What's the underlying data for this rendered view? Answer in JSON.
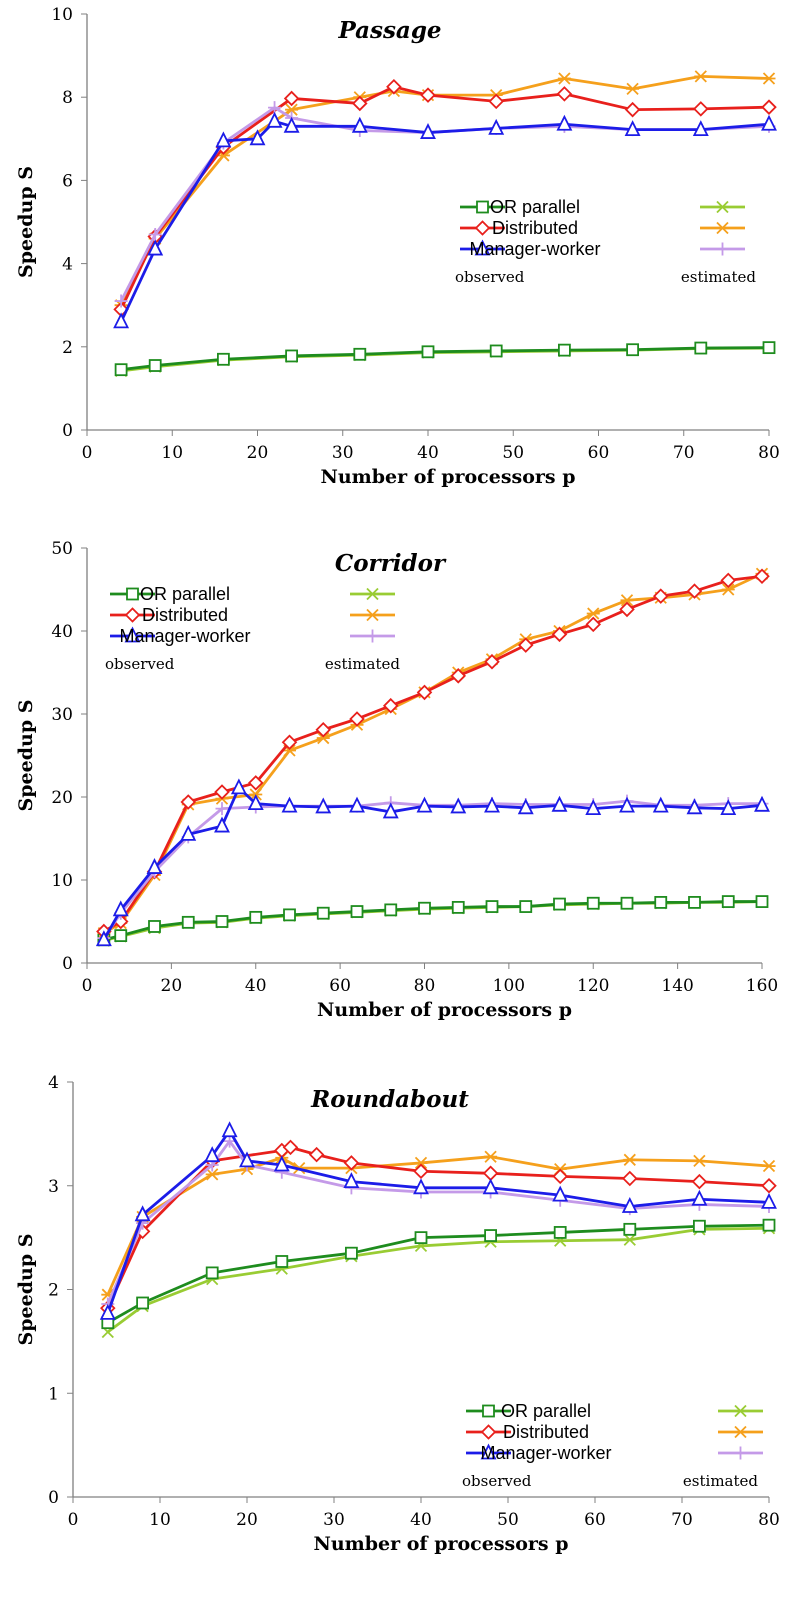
{
  "chart_data": [
    {
      "type": "line",
      "title": "Passage",
      "xlabel": "Number of processors p",
      "ylabel": "Speedup S",
      "xlim": [
        0,
        80
      ],
      "ylim": [
        0,
        10
      ],
      "xticks": [
        0,
        10,
        20,
        30,
        40,
        50,
        60,
        70,
        80
      ],
      "yticks": [
        0,
        2,
        4,
        6,
        8,
        10
      ],
      "legend_placement": "center-right",
      "legend_notes": {
        "observed": "observed",
        "estimated": "estimated"
      },
      "series": [
        {
          "name": "OR parallel",
          "kind": "observed",
          "color": "#1e8c1e",
          "marker": "square",
          "x": [
            4,
            8,
            16,
            24,
            32,
            40,
            48,
            56,
            64,
            72,
            80
          ],
          "y": [
            1.45,
            1.55,
            1.7,
            1.78,
            1.82,
            1.88,
            1.9,
            1.92,
            1.93,
            1.97,
            1.98
          ]
        },
        {
          "name": "",
          "kind": "estimated",
          "color": "#99cc33",
          "marker": "x",
          "x": [
            4,
            8,
            16,
            24,
            32,
            40,
            48,
            56,
            64,
            72,
            80
          ],
          "y": [
            1.42,
            1.52,
            1.68,
            1.76,
            1.8,
            1.86,
            1.88,
            1.9,
            1.92,
            1.96,
            1.97
          ]
        },
        {
          "name": "Distributed",
          "kind": "observed",
          "color": "#e8201c",
          "marker": "diamond",
          "x": [
            4,
            8,
            16,
            24,
            32,
            36,
            40,
            48,
            56,
            64,
            72,
            80
          ],
          "y": [
            2.9,
            4.65,
            6.8,
            7.97,
            7.85,
            8.25,
            8.05,
            7.9,
            8.08,
            7.7,
            7.72,
            7.76
          ]
        },
        {
          "name": "",
          "kind": "estimated",
          "color": "#f5a01c",
          "marker": "asterisk",
          "x": [
            4,
            8,
            16,
            24,
            32,
            36,
            40,
            48,
            56,
            64,
            72,
            80
          ],
          "y": [
            3.0,
            4.6,
            6.6,
            7.7,
            8.0,
            8.15,
            8.05,
            8.05,
            8.45,
            8.2,
            8.5,
            8.45
          ]
        },
        {
          "name": "Manager-worker",
          "kind": "observed",
          "color": "#1c1ce8",
          "marker": "triangle",
          "x": [
            4,
            8,
            16,
            20,
            22,
            24,
            32,
            40,
            48,
            56,
            64,
            72,
            80
          ],
          "y": [
            2.6,
            4.35,
            6.95,
            7.0,
            7.42,
            7.3,
            7.3,
            7.15,
            7.25,
            7.35,
            7.22,
            7.22,
            7.35
          ]
        },
        {
          "name": "",
          "kind": "estimated",
          "color": "#c49ae8",
          "marker": "plus",
          "x": [
            4,
            8,
            16,
            22,
            24,
            32,
            40,
            48,
            56,
            64,
            72,
            80
          ],
          "y": [
            3.1,
            4.7,
            6.9,
            7.75,
            7.5,
            7.2,
            7.15,
            7.25,
            7.3,
            7.22,
            7.22,
            7.3
          ]
        }
      ]
    },
    {
      "type": "line",
      "title": "Corridor",
      "xlabel": "Number of processors p",
      "ylabel": "Speedup S",
      "xlim": [
        0,
        160
      ],
      "ylim": [
        0,
        50
      ],
      "xticks": [
        0,
        20,
        40,
        60,
        80,
        100,
        120,
        140,
        160
      ],
      "yticks": [
        0,
        10,
        20,
        30,
        40,
        50
      ],
      "legend_placement": "top-left",
      "legend_notes": {
        "observed": "observed",
        "estimated": "estimated"
      },
      "series": [
        {
          "name": "OR parallel",
          "kind": "observed",
          "color": "#1e8c1e",
          "marker": "square",
          "x": [
            4,
            8,
            16,
            24,
            32,
            40,
            48,
            56,
            64,
            72,
            80,
            88,
            96,
            104,
            112,
            120,
            128,
            136,
            144,
            152,
            160
          ],
          "y": [
            2.8,
            3.3,
            4.4,
            4.9,
            5.0,
            5.5,
            5.8,
            6.0,
            6.2,
            6.4,
            6.6,
            6.7,
            6.8,
            6.8,
            7.1,
            7.2,
            7.2,
            7.3,
            7.3,
            7.4,
            7.4
          ]
        },
        {
          "name": "",
          "kind": "estimated",
          "color": "#99cc33",
          "marker": "x",
          "x": [
            4,
            8,
            16,
            24,
            32,
            40,
            48,
            56,
            64,
            72,
            80,
            88,
            96,
            104,
            112,
            120,
            128,
            136,
            144,
            152,
            160
          ],
          "y": [
            2.7,
            3.2,
            4.2,
            4.8,
            4.9,
            5.4,
            5.7,
            5.9,
            6.1,
            6.3,
            6.5,
            6.6,
            6.7,
            6.8,
            7.0,
            7.1,
            7.2,
            7.2,
            7.3,
            7.3,
            7.4
          ]
        },
        {
          "name": "Distributed",
          "kind": "observed",
          "color": "#e8201c",
          "marker": "diamond",
          "x": [
            4,
            8,
            16,
            24,
            32,
            40,
            48,
            56,
            64,
            72,
            80,
            88,
            96,
            104,
            112,
            120,
            128,
            136,
            144,
            152,
            160
          ],
          "y": [
            3.8,
            5.0,
            11.0,
            19.4,
            20.6,
            21.7,
            26.6,
            28.1,
            29.4,
            31.0,
            32.6,
            34.6,
            36.3,
            38.3,
            39.6,
            40.8,
            42.6,
            44.2,
            44.8,
            46.1,
            46.6
          ]
        },
        {
          "name": "",
          "kind": "estimated",
          "color": "#f5a01c",
          "marker": "asterisk",
          "x": [
            4,
            8,
            16,
            24,
            32,
            40,
            48,
            56,
            64,
            72,
            80,
            88,
            96,
            104,
            112,
            120,
            128,
            136,
            144,
            152,
            160
          ],
          "y": [
            3.6,
            4.8,
            10.6,
            19.1,
            19.8,
            20.3,
            25.6,
            27.1,
            28.7,
            30.6,
            32.6,
            35.0,
            36.6,
            39.0,
            40.0,
            42.1,
            43.7,
            44.0,
            44.4,
            45.0,
            46.9
          ]
        },
        {
          "name": "Manager-worker",
          "kind": "observed",
          "color": "#1c1ce8",
          "marker": "triangle",
          "x": [
            4,
            8,
            16,
            24,
            32,
            36,
            40,
            48,
            56,
            64,
            72,
            80,
            88,
            96,
            104,
            112,
            120,
            128,
            136,
            144,
            152,
            160
          ],
          "y": [
            2.8,
            6.4,
            11.5,
            15.5,
            16.5,
            21.1,
            19.2,
            18.9,
            18.8,
            18.9,
            18.2,
            18.9,
            18.8,
            18.9,
            18.7,
            19.0,
            18.6,
            18.9,
            18.9,
            18.7,
            18.6,
            19.0
          ]
        },
        {
          "name": "",
          "kind": "estimated",
          "color": "#c49ae8",
          "marker": "plus",
          "x": [
            4,
            8,
            16,
            24,
            32,
            40,
            48,
            56,
            64,
            72,
            80,
            88,
            96,
            104,
            112,
            120,
            128,
            136,
            144,
            152,
            160
          ],
          "y": [
            3.0,
            6.0,
            11.0,
            15.2,
            18.6,
            18.8,
            18.9,
            18.9,
            18.9,
            19.3,
            19.0,
            19.0,
            19.2,
            19.1,
            19.1,
            19.1,
            19.5,
            19.0,
            19.0,
            19.2,
            19.2
          ]
        }
      ]
    },
    {
      "type": "line",
      "title": "Roundabout",
      "xlabel": "Number of processors p",
      "ylabel": "Speedup S",
      "xlim": [
        0,
        80
      ],
      "ylim": [
        0,
        4
      ],
      "xticks": [
        0,
        10,
        20,
        30,
        40,
        50,
        60,
        70,
        80
      ],
      "yticks": [
        0,
        1,
        2,
        3,
        4
      ],
      "legend_placement": "bottom-right",
      "legend_notes": {
        "observed": "observed",
        "estimated": "estimated"
      },
      "series": [
        {
          "name": "OR parallel",
          "kind": "observed",
          "color": "#1e8c1e",
          "marker": "square",
          "x": [
            4,
            8,
            16,
            24,
            32,
            40,
            48,
            56,
            64,
            72,
            80
          ],
          "y": [
            1.68,
            1.87,
            2.16,
            2.27,
            2.35,
            2.5,
            2.52,
            2.55,
            2.58,
            2.61,
            2.62
          ]
        },
        {
          "name": "",
          "kind": "estimated",
          "color": "#99cc33",
          "marker": "x",
          "x": [
            4,
            8,
            16,
            24,
            32,
            40,
            48,
            56,
            64,
            72,
            80
          ],
          "y": [
            1.59,
            1.84,
            2.1,
            2.2,
            2.32,
            2.42,
            2.46,
            2.47,
            2.48,
            2.58,
            2.59
          ]
        },
        {
          "name": "Distributed",
          "kind": "observed",
          "color": "#e8201c",
          "marker": "diamond",
          "x": [
            4,
            8,
            16,
            24,
            25,
            28,
            32,
            40,
            48,
            56,
            64,
            72,
            80
          ],
          "y": [
            1.82,
            2.56,
            3.24,
            3.34,
            3.37,
            3.3,
            3.22,
            3.14,
            3.12,
            3.09,
            3.07,
            3.04,
            3.0
          ]
        },
        {
          "name": "",
          "kind": "estimated",
          "color": "#f5a01c",
          "marker": "asterisk",
          "x": [
            4,
            8,
            16,
            20,
            24,
            26,
            32,
            40,
            48,
            56,
            64,
            72,
            80
          ],
          "y": [
            1.95,
            2.7,
            3.11,
            3.16,
            3.27,
            3.17,
            3.17,
            3.22,
            3.28,
            3.16,
            3.25,
            3.24,
            3.19
          ]
        },
        {
          "name": "Manager-worker",
          "kind": "observed",
          "color": "#1c1ce8",
          "marker": "triangle",
          "x": [
            4,
            8,
            16,
            18,
            20,
            24,
            32,
            40,
            48,
            56,
            64,
            72,
            80
          ],
          "y": [
            1.77,
            2.72,
            3.29,
            3.53,
            3.24,
            3.2,
            3.04,
            2.98,
            2.98,
            2.91,
            2.8,
            2.87,
            2.84
          ]
        },
        {
          "name": "",
          "kind": "estimated",
          "color": "#c49ae8",
          "marker": "plus",
          "x": [
            4,
            8,
            16,
            18,
            20,
            24,
            32,
            40,
            48,
            56,
            64,
            72,
            80
          ],
          "y": [
            1.86,
            2.64,
            3.2,
            3.43,
            3.2,
            3.13,
            2.98,
            2.94,
            2.94,
            2.86,
            2.78,
            2.82,
            2.8
          ]
        }
      ]
    }
  ]
}
